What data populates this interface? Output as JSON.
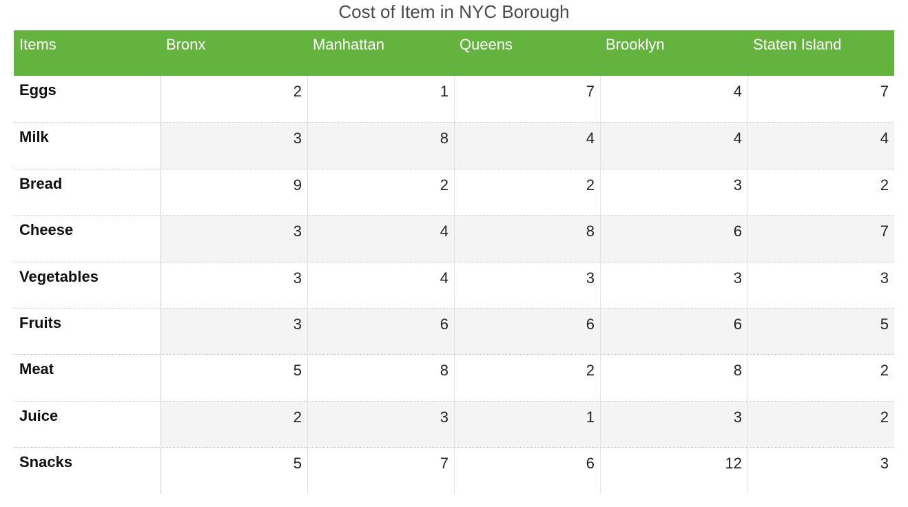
{
  "title": "Cost of Item in NYC Borough",
  "colors": {
    "header_bg": "#65b33f",
    "header_text": "#ffffff",
    "alt_row_bg": "#f4f4f4"
  },
  "chart_data": {
    "type": "table",
    "title": "Cost of Item in NYC Borough",
    "columns": [
      "Items",
      "Bronx",
      "Manhattan",
      "Queens",
      "Brooklyn",
      "Staten Island"
    ],
    "rows": [
      {
        "item": "Eggs",
        "values": [
          2,
          1,
          7,
          4,
          7
        ]
      },
      {
        "item": "Milk",
        "values": [
          3,
          8,
          4,
          4,
          4
        ]
      },
      {
        "item": "Bread",
        "values": [
          9,
          2,
          2,
          3,
          2
        ]
      },
      {
        "item": "Cheese",
        "values": [
          3,
          4,
          8,
          6,
          7
        ]
      },
      {
        "item": "Vegetables",
        "values": [
          3,
          4,
          3,
          3,
          3
        ]
      },
      {
        "item": "Fruits",
        "values": [
          3,
          6,
          6,
          6,
          5
        ]
      },
      {
        "item": "Meat",
        "values": [
          5,
          8,
          2,
          8,
          2
        ]
      },
      {
        "item": "Juice",
        "values": [
          2,
          3,
          1,
          3,
          2
        ]
      },
      {
        "item": "Snacks",
        "values": [
          5,
          7,
          6,
          12,
          3
        ]
      }
    ]
  }
}
